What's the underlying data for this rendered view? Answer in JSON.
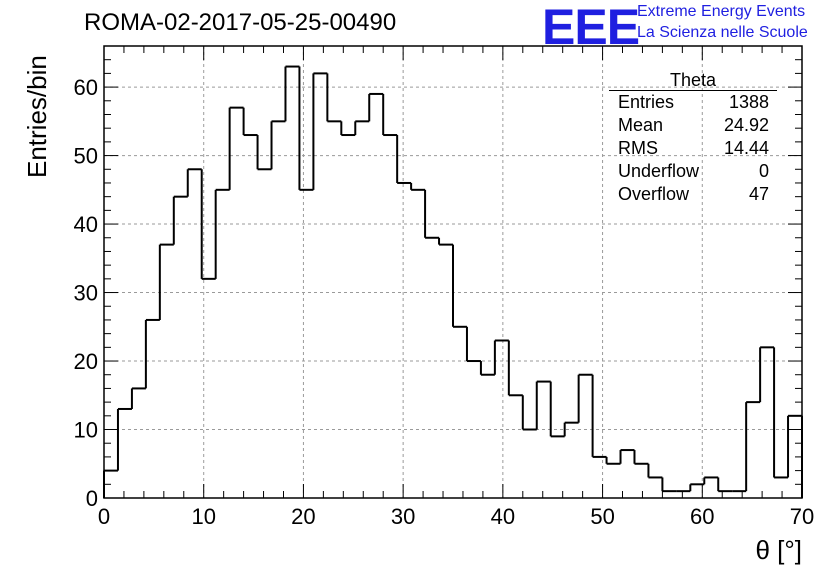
{
  "chart_data": {
    "type": "histogram",
    "title": "ROMA-02-2017-05-25-00490",
    "xlabel": "θ [°]",
    "ylabel": "Entries/bin",
    "xlim": [
      0,
      70
    ],
    "ylim": [
      0,
      66
    ],
    "bin_width": 1.4,
    "x_ticks": [
      "0",
      "10",
      "20",
      "30",
      "40",
      "50",
      "60",
      "70"
    ],
    "y_ticks": [
      "0",
      "10",
      "20",
      "30",
      "40",
      "50",
      "60"
    ],
    "grid": true,
    "values": [
      4,
      13,
      16,
      26,
      37,
      44,
      48,
      32,
      45,
      57,
      53,
      48,
      55,
      63,
      45,
      62,
      55,
      53,
      55,
      59,
      53,
      46,
      45,
      38,
      37,
      25,
      20,
      18,
      23,
      15,
      10,
      17,
      9,
      11,
      18,
      6,
      5,
      7,
      5,
      3,
      1,
      1,
      2,
      3,
      1,
      1,
      14,
      22,
      3,
      12
    ],
    "series": [
      {
        "name": "Theta"
      }
    ]
  },
  "stats_box": {
    "title": "Theta",
    "rows": [
      {
        "label": "Entries",
        "value": "1388"
      },
      {
        "label": "Mean",
        "value": "24.92"
      },
      {
        "label": "RMS",
        "value": "14.44"
      },
      {
        "label": "Underflow",
        "value": "0"
      },
      {
        "label": "Overflow",
        "value": "47"
      }
    ]
  },
  "logo": {
    "mark": "EEE",
    "line1": "Extreme Energy Events",
    "line2": "La Scienza nelle Scuole",
    "color": "#1f1fe0"
  }
}
